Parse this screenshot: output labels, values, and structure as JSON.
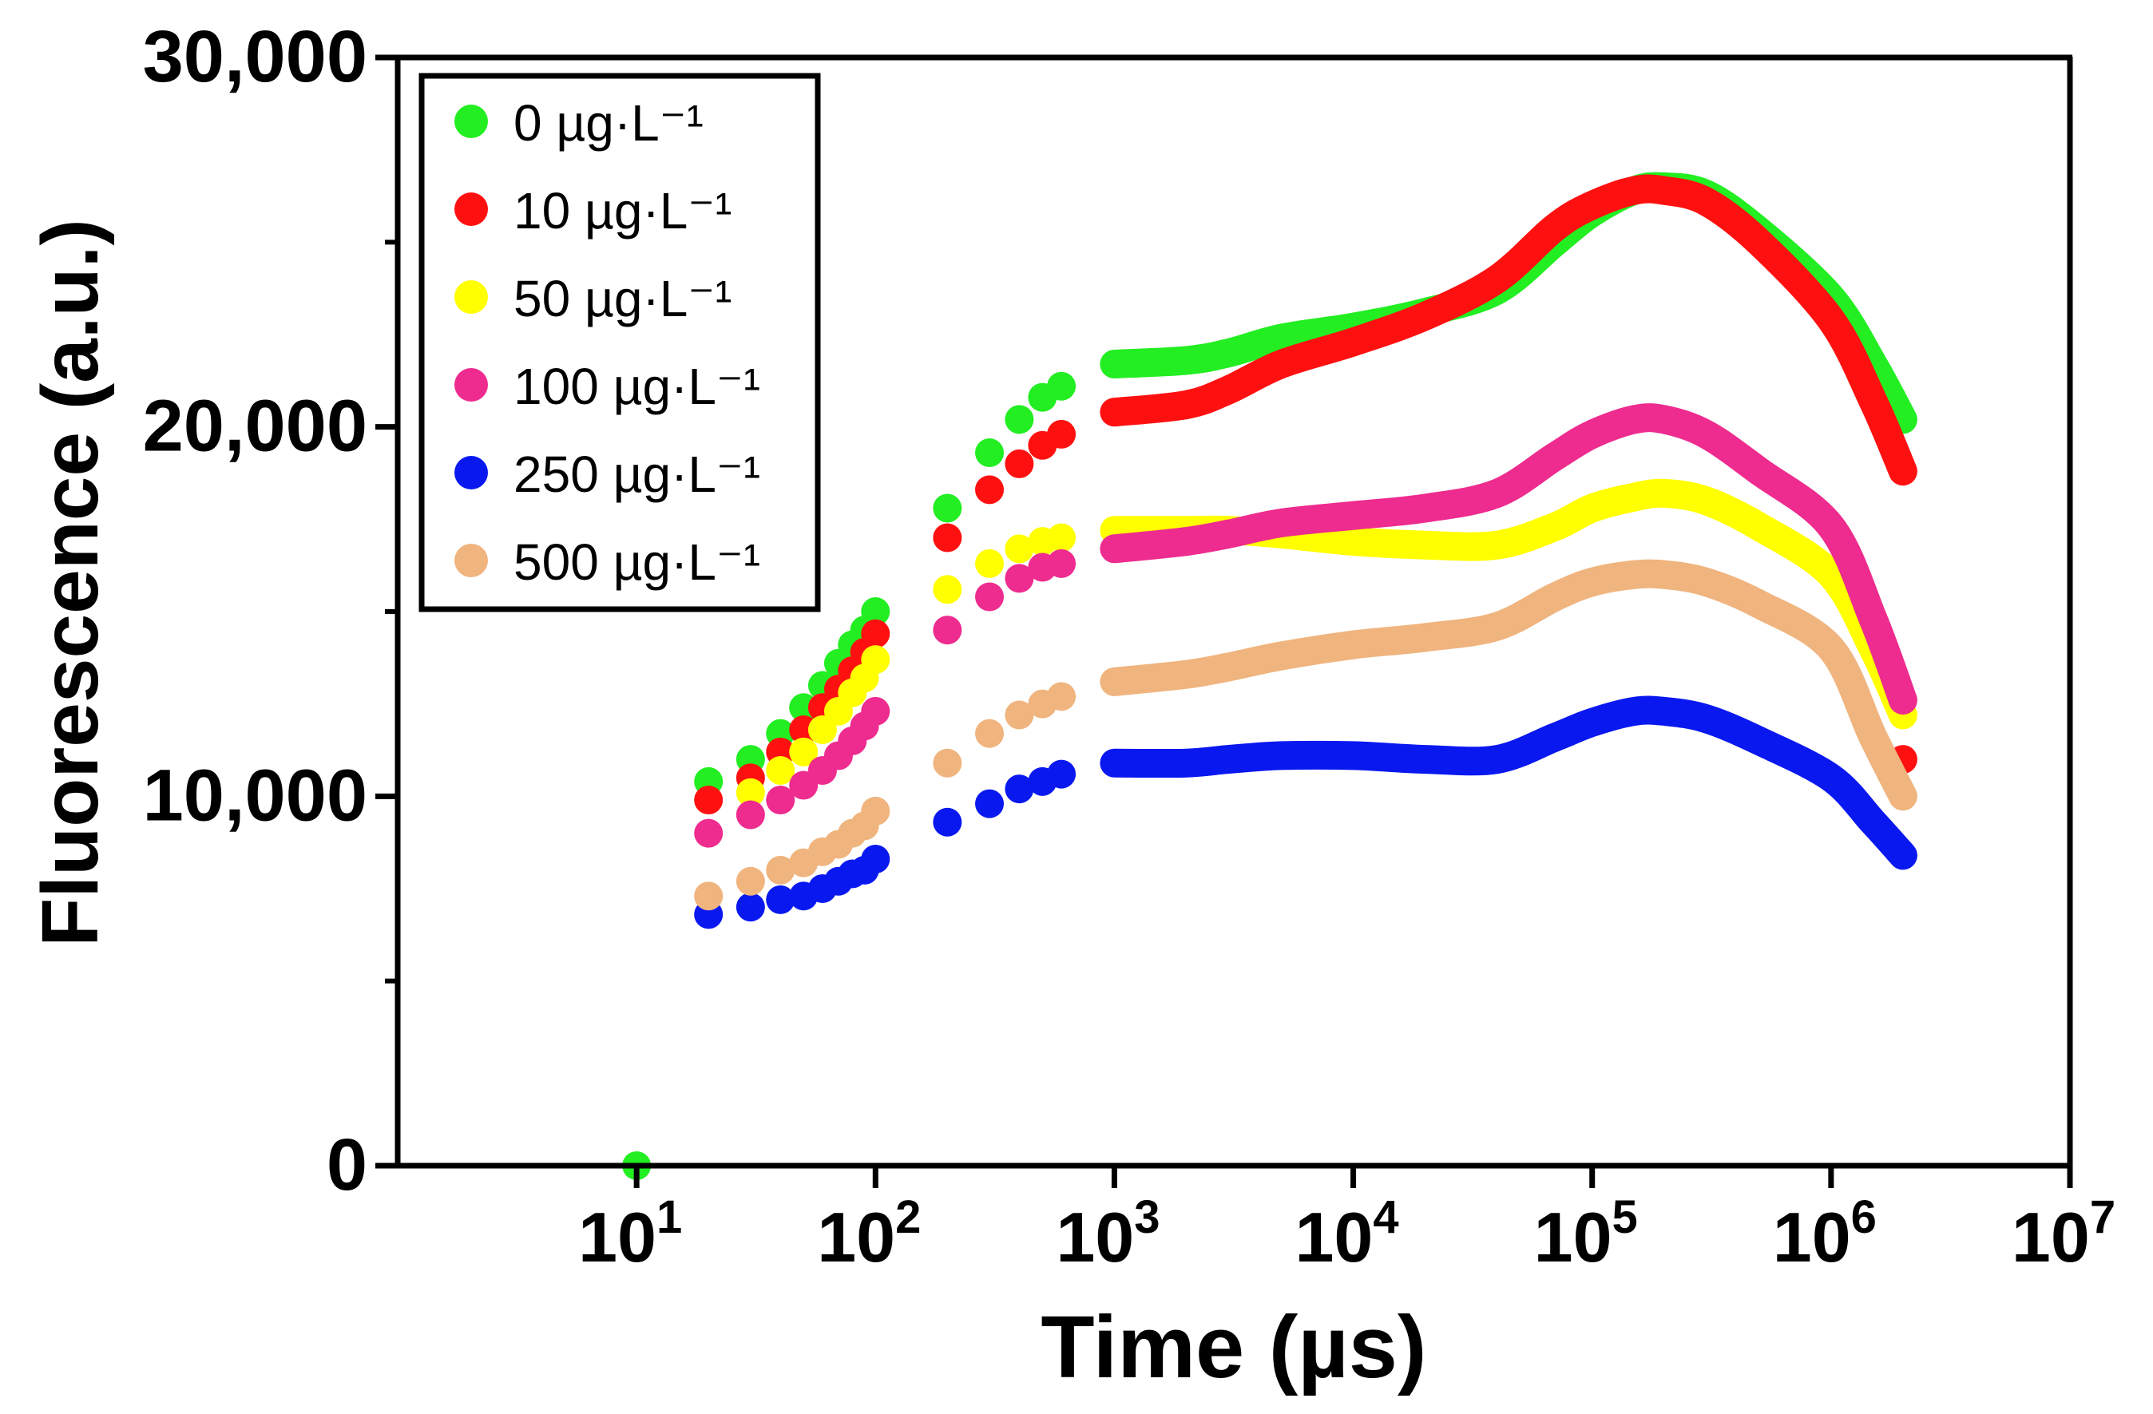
{
  "chart_data": {
    "type": "scatter",
    "title": "",
    "xlabel": "Time (µs)",
    "ylabel": "Fluorescence (a.u.)",
    "xscale": "log",
    "xlim": [
      1,
      10000000
    ],
    "ylim": [
      0,
      30000
    ],
    "x_ticks": [
      {
        "value": 10,
        "base": "10",
        "exp": "1"
      },
      {
        "value": 100,
        "base": "10",
        "exp": "2"
      },
      {
        "value": 1000,
        "base": "10",
        "exp": "3"
      },
      {
        "value": 10000,
        "base": "10",
        "exp": "4"
      },
      {
        "value": 100000,
        "base": "10",
        "exp": "5"
      },
      {
        "value": 1000000,
        "base": "10",
        "exp": "6"
      },
      {
        "value": 10000000,
        "base": "10",
        "exp": "7"
      }
    ],
    "y_ticks": [
      {
        "value": 0,
        "label": "0"
      },
      {
        "value": 10000,
        "label": "10,000"
      },
      {
        "value": 20000,
        "label": "20,000"
      },
      {
        "value": 30000,
        "label": "30,000"
      }
    ],
    "grid": false,
    "legend_position": "top-left",
    "series": [
      {
        "name": "0 µg·L⁻¹",
        "color": "#22ee22",
        "points": [
          [
            10,
            0
          ],
          [
            20,
            10400
          ],
          [
            30,
            11000
          ],
          [
            40,
            11700
          ],
          [
            50,
            12400
          ],
          [
            60,
            13000
          ],
          [
            70,
            13600
          ],
          [
            80,
            14100
          ],
          [
            90,
            14500
          ],
          [
            100,
            15000
          ],
          [
            200,
            17800
          ],
          [
            300,
            19300
          ],
          [
            400,
            20200
          ],
          [
            500,
            20800
          ],
          [
            600,
            21100
          ]
        ],
        "curve": [
          [
            1000,
            21700
          ],
          [
            2000,
            21800
          ],
          [
            3000,
            22000
          ],
          [
            5000,
            22400
          ],
          [
            10000,
            22700
          ],
          [
            20000,
            23100
          ],
          [
            40000,
            23700
          ],
          [
            70000,
            25000
          ],
          [
            100000,
            25800
          ],
          [
            150000,
            26400
          ],
          [
            200000,
            26500
          ],
          [
            300000,
            26300
          ],
          [
            500000,
            25300
          ],
          [
            1000000,
            23500
          ],
          [
            1500000,
            21700
          ],
          [
            2000000,
            20200
          ]
        ]
      },
      {
        "name": "10 µg·L⁻¹",
        "color": "#ff1010",
        "points": [
          [
            20,
            9900
          ],
          [
            30,
            10500
          ],
          [
            40,
            11200
          ],
          [
            50,
            11800
          ],
          [
            60,
            12400
          ],
          [
            70,
            12900
          ],
          [
            80,
            13400
          ],
          [
            90,
            13900
          ],
          [
            100,
            14400
          ],
          [
            200,
            17000
          ],
          [
            300,
            18300
          ],
          [
            400,
            19000
          ],
          [
            500,
            19500
          ],
          [
            600,
            19800
          ]
        ],
        "curve": [
          [
            1000,
            20400
          ],
          [
            2000,
            20600
          ],
          [
            3000,
            21000
          ],
          [
            5000,
            21700
          ],
          [
            10000,
            22300
          ],
          [
            20000,
            23000
          ],
          [
            40000,
            24000
          ],
          [
            70000,
            25400
          ],
          [
            100000,
            26000
          ],
          [
            150000,
            26400
          ],
          [
            200000,
            26400
          ],
          [
            300000,
            26100
          ],
          [
            500000,
            25000
          ],
          [
            1000000,
            22900
          ],
          [
            1500000,
            20700
          ],
          [
            2000000,
            18800
          ]
        ],
        "end_point": [
          2000000,
          11000
        ]
      },
      {
        "name": "50 µg·L⁻¹",
        "color": "#ffff00",
        "points": [
          [
            30,
            10100
          ],
          [
            40,
            10700
          ],
          [
            50,
            11200
          ],
          [
            60,
            11800
          ],
          [
            70,
            12300
          ],
          [
            80,
            12800
          ],
          [
            90,
            13200
          ],
          [
            100,
            13700
          ],
          [
            200,
            15600
          ],
          [
            300,
            16300
          ],
          [
            400,
            16700
          ],
          [
            500,
            16900
          ],
          [
            600,
            17000
          ]
        ],
        "curve": [
          [
            1000,
            17200
          ],
          [
            2000,
            17200
          ],
          [
            3000,
            17200
          ],
          [
            5000,
            17100
          ],
          [
            10000,
            16900
          ],
          [
            20000,
            16800
          ],
          [
            40000,
            16800
          ],
          [
            70000,
            17300
          ],
          [
            100000,
            17800
          ],
          [
            150000,
            18100
          ],
          [
            200000,
            18200
          ],
          [
            300000,
            18000
          ],
          [
            500000,
            17300
          ],
          [
            1000000,
            16000
          ],
          [
            1500000,
            14000
          ],
          [
            2000000,
            12200
          ]
        ]
      },
      {
        "name": "100 µg·L⁻¹",
        "color": "#ee2b8e",
        "points": [
          [
            20,
            9000
          ],
          [
            30,
            9500
          ],
          [
            40,
            9900
          ],
          [
            50,
            10300
          ],
          [
            60,
            10700
          ],
          [
            70,
            11100
          ],
          [
            80,
            11500
          ],
          [
            90,
            11900
          ],
          [
            100,
            12300
          ],
          [
            200,
            14500
          ],
          [
            300,
            15400
          ],
          [
            400,
            15900
          ],
          [
            500,
            16200
          ],
          [
            600,
            16300
          ]
        ],
        "curve": [
          [
            1000,
            16700
          ],
          [
            2000,
            16900
          ],
          [
            3000,
            17100
          ],
          [
            5000,
            17400
          ],
          [
            10000,
            17600
          ],
          [
            20000,
            17800
          ],
          [
            40000,
            18200
          ],
          [
            70000,
            19200
          ],
          [
            100000,
            19800
          ],
          [
            150000,
            20200
          ],
          [
            200000,
            20200
          ],
          [
            300000,
            19800
          ],
          [
            500000,
            18800
          ],
          [
            1000000,
            17300
          ],
          [
            1500000,
            14800
          ],
          [
            2000000,
            12600
          ]
        ]
      },
      {
        "name": "250 µg·L⁻¹",
        "color": "#0a18f0",
        "points": [
          [
            20,
            6800
          ],
          [
            30,
            7000
          ],
          [
            40,
            7200
          ],
          [
            50,
            7300
          ],
          [
            60,
            7500
          ],
          [
            70,
            7700
          ],
          [
            80,
            7900
          ],
          [
            90,
            8000
          ],
          [
            100,
            8300
          ],
          [
            200,
            9300
          ],
          [
            300,
            9800
          ],
          [
            400,
            10200
          ],
          [
            500,
            10400
          ],
          [
            600,
            10600
          ]
        ],
        "curve": [
          [
            1000,
            10900
          ],
          [
            2000,
            10900
          ],
          [
            3000,
            11000
          ],
          [
            5000,
            11100
          ],
          [
            10000,
            11100
          ],
          [
            20000,
            11000
          ],
          [
            40000,
            11000
          ],
          [
            70000,
            11600
          ],
          [
            100000,
            12000
          ],
          [
            150000,
            12300
          ],
          [
            200000,
            12300
          ],
          [
            300000,
            12100
          ],
          [
            500000,
            11500
          ],
          [
            1000000,
            10500
          ],
          [
            1500000,
            9300
          ],
          [
            2000000,
            8400
          ]
        ]
      },
      {
        "name": "500 µg·L⁻¹",
        "color": "#f0b47e",
        "points": [
          [
            20,
            7300
          ],
          [
            30,
            7700
          ],
          [
            40,
            8000
          ],
          [
            50,
            8200
          ],
          [
            60,
            8500
          ],
          [
            70,
            8700
          ],
          [
            80,
            9000
          ],
          [
            90,
            9200
          ],
          [
            100,
            9600
          ],
          [
            200,
            10900
          ],
          [
            300,
            11700
          ],
          [
            400,
            12200
          ],
          [
            500,
            12500
          ],
          [
            600,
            12700
          ]
        ],
        "curve": [
          [
            1000,
            13100
          ],
          [
            2000,
            13300
          ],
          [
            3000,
            13500
          ],
          [
            5000,
            13800
          ],
          [
            10000,
            14100
          ],
          [
            20000,
            14300
          ],
          [
            40000,
            14600
          ],
          [
            70000,
            15400
          ],
          [
            100000,
            15800
          ],
          [
            150000,
            16000
          ],
          [
            200000,
            16000
          ],
          [
            300000,
            15800
          ],
          [
            500000,
            15200
          ],
          [
            1000000,
            14000
          ],
          [
            1500000,
            11600
          ],
          [
            2000000,
            10000
          ]
        ]
      }
    ]
  }
}
